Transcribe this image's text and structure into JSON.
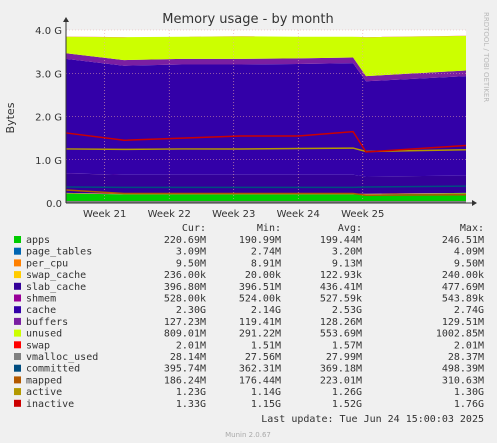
{
  "chart_data": {
    "type": "area",
    "title": "Memory usage - by month",
    "ylabel": "Bytes",
    "side_label": "RRDTOOL / TOBI OETIKER",
    "ylim": [
      0,
      4.0
    ],
    "y_unit": "G",
    "yticks": [
      "0.0",
      "1.0 G",
      "2.0 G",
      "3.0 G",
      "4.0 G"
    ],
    "xlim": [
      -0.6,
      5.6
    ],
    "xticks": [
      {
        "label": "Week 21",
        "x": 0
      },
      {
        "label": "Week 22",
        "x": 1
      },
      {
        "label": "Week 23",
        "x": 2
      },
      {
        "label": "Week 24",
        "x": 3
      },
      {
        "label": "Week 25",
        "x": 4
      }
    ],
    "columns": [
      "",
      "Cur:",
      "Min:",
      "Avg:",
      "Max:"
    ],
    "series": [
      {
        "name": "apps",
        "color": "#00cc00",
        "kind": "area",
        "cur": "220.69M",
        "min": "190.99M",
        "avg": "199.44M",
        "max": "246.51M",
        "values": [
          0.22,
          0.2,
          0.2,
          0.2,
          0.2,
          0.2,
          0.2,
          0.22
        ]
      },
      {
        "name": "page_tables",
        "color": "#0066b3",
        "kind": "area",
        "cur": "3.09M",
        "min": "2.74M",
        "avg": "3.20M",
        "max": "4.09M",
        "values": [
          0.003,
          0.003,
          0.003,
          0.003,
          0.003,
          0.003,
          0.003,
          0.003
        ]
      },
      {
        "name": "per_cpu",
        "color": "#ff8000",
        "kind": "area",
        "cur": "9.50M",
        "min": "8.91M",
        "avg": "9.13M",
        "max": "9.50M",
        "values": [
          0.01,
          0.01,
          0.01,
          0.01,
          0.01,
          0.01,
          0.01,
          0.01
        ]
      },
      {
        "name": "swap_cache",
        "color": "#ffcc00",
        "kind": "area",
        "cur": "236.00k",
        "min": "20.00k",
        "avg": "122.93k",
        "max": "240.00k",
        "values": [
          0.0002,
          0.0001,
          0.0001,
          0.0001,
          0.0001,
          0.0001,
          0.0002,
          0.0002
        ]
      },
      {
        "name": "slab_cache",
        "color": "#330099",
        "kind": "area",
        "cur": "396.80M",
        "min": "396.51M",
        "avg": "436.41M",
        "max": "477.69M",
        "values": [
          0.45,
          0.44,
          0.44,
          0.44,
          0.44,
          0.44,
          0.4,
          0.4
        ]
      },
      {
        "name": "shmem",
        "color": "#990099",
        "kind": "area",
        "cur": "528.00k",
        "min": "524.00k",
        "avg": "527.59k",
        "max": "543.89k",
        "values": [
          0.0005,
          0.0005,
          0.0005,
          0.0005,
          0.0005,
          0.0005,
          0.0005,
          0.0005
        ]
      },
      {
        "name": "cache",
        "color": "#3300a8",
        "kind": "area",
        "cur": "2.30G",
        "min": "2.14G",
        "avg": "2.53G",
        "max": "2.74G",
        "values": [
          2.65,
          2.52,
          2.55,
          2.55,
          2.56,
          2.58,
          2.2,
          2.3
        ]
      },
      {
        "name": "buffers",
        "color": "#7a1fa2",
        "kind": "area",
        "cur": "127.23M",
        "min": "119.41M",
        "avg": "128.26M",
        "max": "129.51M",
        "values": [
          0.13,
          0.13,
          0.13,
          0.13,
          0.13,
          0.13,
          0.12,
          0.13
        ]
      },
      {
        "name": "unused",
        "color": "#ccff00",
        "kind": "area",
        "cur": "809.01M",
        "min": "291.22M",
        "avg": "553.69M",
        "max": "1002.85M",
        "values": [
          0.38,
          0.53,
          0.51,
          0.52,
          0.5,
          0.48,
          0.9,
          0.8
        ]
      },
      {
        "name": "swap",
        "color": "#ff0000",
        "kind": "area",
        "cur": "2.01M",
        "min": "1.51M",
        "avg": "1.57M",
        "max": "2.01M",
        "values": [
          0.002,
          0.0015,
          0.0015,
          0.0015,
          0.0015,
          0.0015,
          0.0015,
          0.002
        ]
      },
      {
        "name": "vmalloc_used",
        "color": "#808080",
        "kind": "line",
        "cur": "28.14M",
        "min": "27.56M",
        "avg": "27.99M",
        "max": "28.37M",
        "values": [
          0.03,
          0.03,
          0.03,
          0.03,
          0.03,
          0.03,
          0.03,
          0.03
        ]
      },
      {
        "name": "committed",
        "color": "#004d80",
        "kind": "line",
        "cur": "395.74M",
        "min": "362.31M",
        "avg": "369.18M",
        "max": "498.39M",
        "values": [
          0.37,
          0.36,
          0.36,
          0.36,
          0.36,
          0.36,
          0.37,
          0.39
        ]
      },
      {
        "name": "mapped",
        "color": "#b35900",
        "kind": "line",
        "cur": "186.24M",
        "min": "176.44M",
        "avg": "223.01M",
        "max": "310.63M",
        "values": [
          0.3,
          0.22,
          0.22,
          0.22,
          0.22,
          0.22,
          0.18,
          0.19
        ]
      },
      {
        "name": "active",
        "color": "#b39900",
        "kind": "line",
        "cur": "1.23G",
        "min": "1.14G",
        "avg": "1.26G",
        "max": "1.30G",
        "values": [
          1.25,
          1.24,
          1.25,
          1.25,
          1.26,
          1.27,
          1.19,
          1.23
        ]
      },
      {
        "name": "inactive",
        "color": "#cc0000",
        "kind": "line",
        "cur": "1.33G",
        "min": "1.15G",
        "avg": "1.52G",
        "max": "1.76G",
        "values": [
          1.62,
          1.45,
          1.5,
          1.55,
          1.55,
          1.65,
          1.18,
          1.33
        ]
      }
    ],
    "x": [
      -0.6,
      0.3,
      1.2,
      2.1,
      3.0,
      3.85,
      4.05,
      5.6
    ],
    "last_update": "Last update: Tue Jun 24 15:00:03 2025",
    "footer": "Munin 2.0.67"
  }
}
